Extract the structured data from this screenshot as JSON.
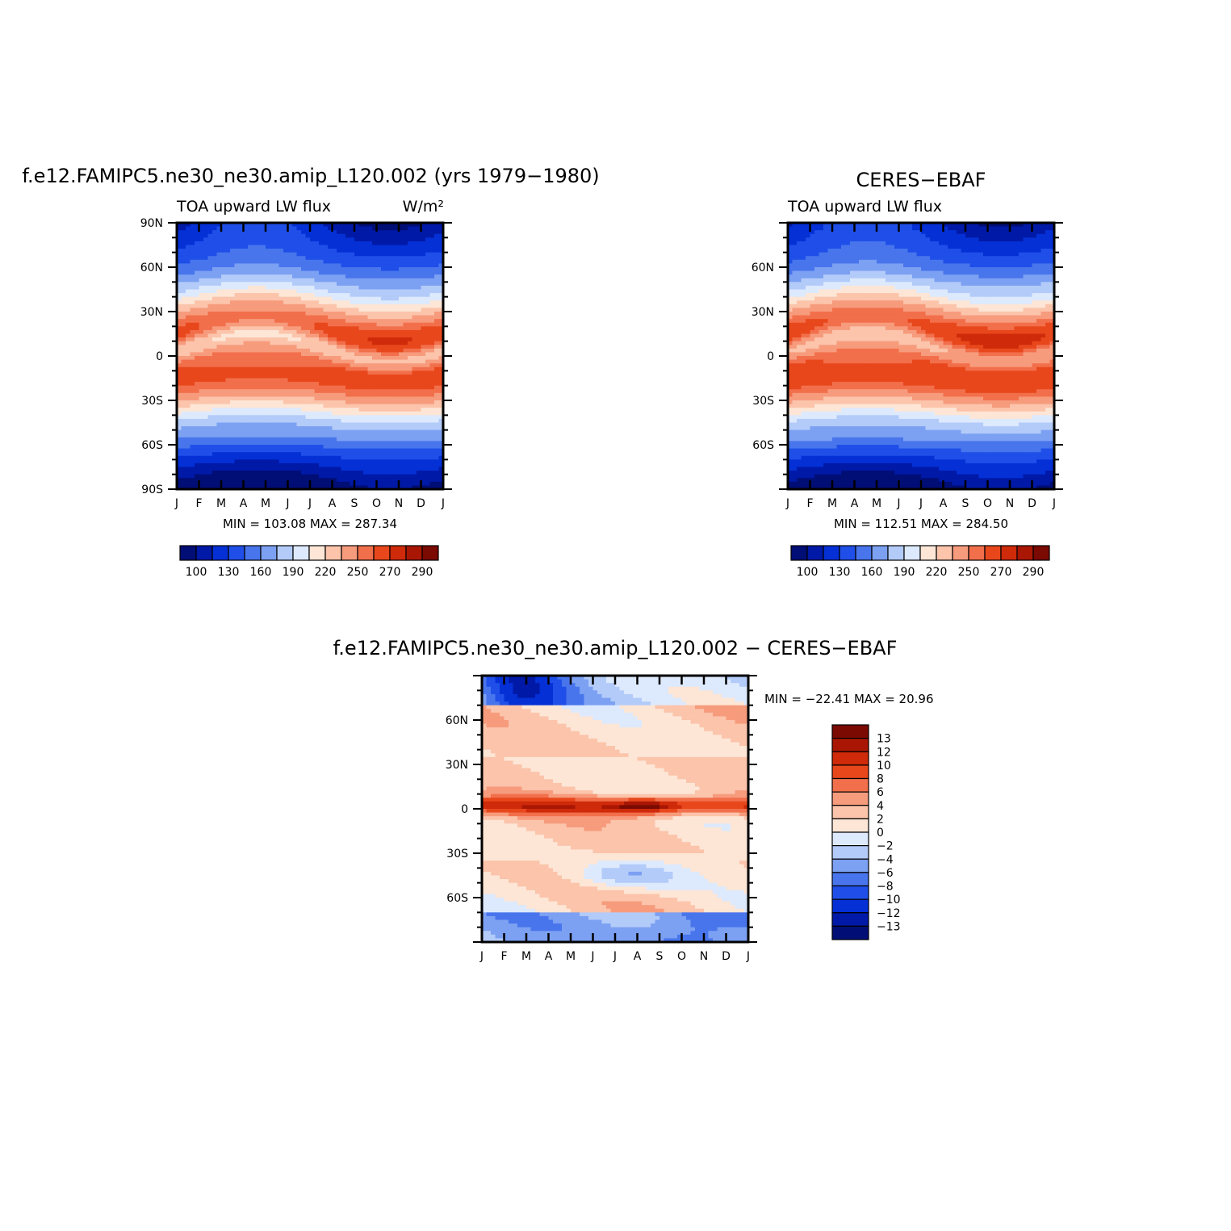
{
  "palette": {
    "model_obs": [
      "#000e75",
      "#0019a6",
      "#0430d6",
      "#1f4fe8",
      "#4875ec",
      "#7ca0f2",
      "#b3cbf9",
      "#dde9fd",
      "#fde6d6",
      "#fbc4ab",
      "#f79b7d",
      "#f26f4b",
      "#e8471c",
      "#cf2a0a",
      "#a91704",
      "#7a0a02"
    ],
    "diff": [
      "#7a0a02",
      "#a91704",
      "#cf2a0a",
      "#e8471c",
      "#f26f4b",
      "#f79b7d",
      "#fbc4ab",
      "#fde6d6",
      "#dde9fd",
      "#b3cbf9",
      "#7ca0f2",
      "#4875ec",
      "#1f4fe8",
      "#0430d6",
      "#0019a6",
      "#000e75"
    ]
  },
  "chart_data": [
    {
      "type": "heatmap",
      "panel": "model",
      "title": "f.e12.FAMIPC5.ne30_ne30.amip_L120.002 (yrs 1979−1980)",
      "left_label": "TOA upward LW flux",
      "right_label": "W/m²",
      "x_tick_labels": [
        "J",
        "F",
        "M",
        "A",
        "M",
        "J",
        "J",
        "A",
        "S",
        "O",
        "N",
        "D",
        "J"
      ],
      "y_tick_labels": [
        "90N",
        "60N",
        "30N",
        "0",
        "30S",
        "60S",
        "90S"
      ],
      "ylim": [
        -90,
        90
      ],
      "stats": "MIN =  103.08  MAX =  287.34",
      "min": 103.08,
      "max": 287.34,
      "colorbar_labels": [
        "100",
        "130",
        "160",
        "190",
        "220",
        "250",
        "270",
        "290"
      ]
    },
    {
      "type": "heatmap",
      "panel": "obs",
      "title": "CERES−EBAF",
      "left_label": "TOA upward LW flux",
      "right_label": "",
      "x_tick_labels": [
        "J",
        "F",
        "M",
        "A",
        "M",
        "J",
        "J",
        "A",
        "S",
        "O",
        "N",
        "D",
        "J"
      ],
      "y_tick_labels": [
        "60N",
        "30N",
        "0",
        "30S",
        "60S"
      ],
      "ylim": [
        -90,
        90
      ],
      "stats": "MIN =  112.51  MAX =  284.50",
      "min": 112.51,
      "max": 284.5,
      "colorbar_labels": [
        "100",
        "130",
        "160",
        "190",
        "220",
        "250",
        "270",
        "290"
      ]
    },
    {
      "type": "heatmap",
      "panel": "difference",
      "title": "f.e12.FAMIPC5.ne30_ne30.amip_L120.002  −  CERES−EBAF",
      "x_tick_labels": [
        "J",
        "F",
        "M",
        "A",
        "M",
        "J",
        "J",
        "A",
        "S",
        "O",
        "N",
        "D",
        "J"
      ],
      "y_tick_labels": [
        "60N",
        "30N",
        "0",
        "30S",
        "60S"
      ],
      "ylim": [
        -90,
        90
      ],
      "stats": "MIN = −22.41  MAX =   20.96",
      "min": -22.41,
      "max": 20.96,
      "colorbar_labels": [
        "13",
        "12",
        "10",
        "8",
        "6",
        "4",
        "2",
        "0",
        "−2",
        "−4",
        "−6",
        "−8",
        "−10",
        "−12",
        "−13"
      ]
    }
  ]
}
